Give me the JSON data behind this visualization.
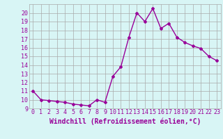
{
  "hours": [
    0,
    1,
    2,
    3,
    4,
    5,
    6,
    7,
    8,
    9,
    10,
    11,
    12,
    13,
    14,
    15,
    16,
    17,
    18,
    19,
    20,
    21,
    22,
    23
  ],
  "values": [
    11.0,
    10.0,
    9.9,
    9.8,
    9.7,
    9.5,
    9.4,
    9.3,
    10.0,
    9.7,
    12.7,
    13.8,
    17.2,
    20.0,
    19.0,
    20.5,
    18.2,
    18.8,
    17.2,
    16.6,
    16.2,
    15.9,
    15.0,
    14.5
  ],
  "xlabel": "Windchill (Refroidissement éolien,°C)",
  "ylim": [
    9,
    21
  ],
  "xlim": [
    -0.5,
    23.5
  ],
  "yticks": [
    9,
    10,
    11,
    12,
    13,
    14,
    15,
    16,
    17,
    18,
    19,
    20
  ],
  "xticks": [
    0,
    1,
    2,
    3,
    4,
    5,
    6,
    7,
    8,
    9,
    10,
    11,
    12,
    13,
    14,
    15,
    16,
    17,
    18,
    19,
    20,
    21,
    22,
    23
  ],
  "line_color": "#990099",
  "marker": "D",
  "marker_size": 2.0,
  "line_width": 1.0,
  "bg_color": "#d8f5f5",
  "grid_color": "#aaaaaa",
  "tick_label_fontsize": 6.0,
  "xlabel_fontsize": 7.0
}
